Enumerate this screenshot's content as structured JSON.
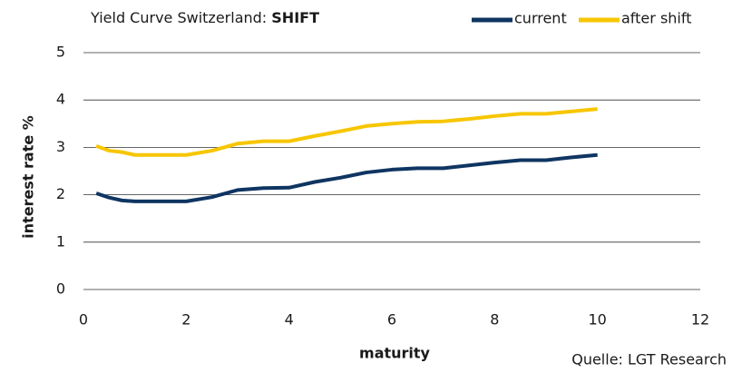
{
  "chart_data": {
    "type": "line",
    "title": "Yield Curve Switzerland:",
    "title_emphasis": "SHIFT",
    "xlabel": "maturity",
    "ylabel": "interest rate %",
    "source": "Quelle: LGT Research",
    "x": [
      0.25,
      0.5,
      0.75,
      1,
      1.5,
      2,
      2.5,
      3,
      3.5,
      4,
      4.5,
      5,
      5.5,
      6,
      6.5,
      7,
      7.5,
      8,
      8.5,
      9,
      9.5,
      10
    ],
    "series": [
      {
        "name": "current",
        "color": "#0f3562",
        "values": [
          2.03,
          1.94,
          1.88,
          1.86,
          1.86,
          1.86,
          1.95,
          2.1,
          2.14,
          2.15,
          2.27,
          2.36,
          2.47,
          2.53,
          2.56,
          2.56,
          2.62,
          2.68,
          2.73,
          2.73,
          2.79,
          2.84
        ]
      },
      {
        "name": "after shift",
        "color": "#f7c600",
        "values": [
          3.03,
          2.93,
          2.9,
          2.84,
          2.84,
          2.84,
          2.93,
          3.08,
          3.13,
          3.13,
          3.24,
          3.34,
          3.45,
          3.5,
          3.54,
          3.55,
          3.6,
          3.66,
          3.71,
          3.71,
          3.76,
          3.81
        ]
      }
    ],
    "xlim": [
      0,
      12
    ],
    "xticks": [
      0,
      2,
      4,
      6,
      8,
      10,
      12
    ],
    "ylim": [
      0,
      5
    ],
    "yticks": [
      0,
      1,
      2,
      3,
      4,
      5
    ],
    "grid": true,
    "legend": "top-right"
  }
}
